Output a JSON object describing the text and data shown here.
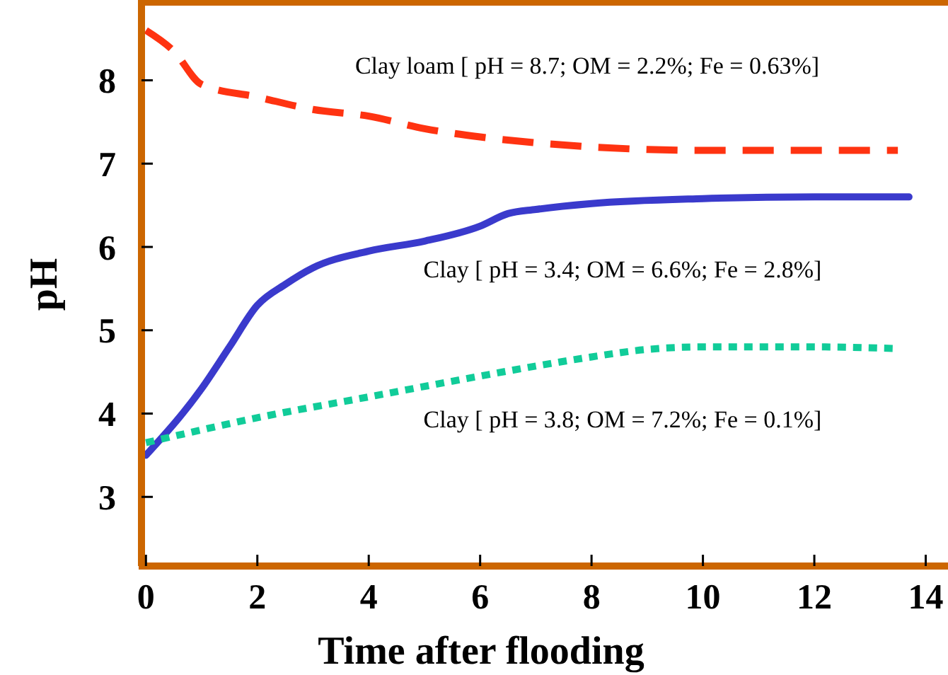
{
  "chart_data": {
    "type": "line",
    "xlabel": "Time after flooding",
    "ylabel": "pH",
    "xlim": [
      -0.08,
      14.4
    ],
    "ylim": [
      2.17,
      8.93
    ],
    "xticks": [
      0,
      2,
      4,
      6,
      8,
      10,
      12,
      14
    ],
    "yticks": [
      3,
      4,
      5,
      6,
      7,
      8
    ],
    "series": [
      {
        "name": "Clay loam  [ pH = 8.7; OM = 2.2%; Fe = 0.63%]",
        "color": "#ff3311",
        "line_style": "dashed",
        "x": [
          0,
          0.5,
          1,
          2,
          3,
          4,
          5,
          6,
          7,
          8,
          9,
          10,
          11,
          12,
          13.5
        ],
        "values": [
          8.6,
          8.35,
          7.95,
          7.8,
          7.65,
          7.57,
          7.42,
          7.32,
          7.25,
          7.2,
          7.17,
          7.16,
          7.16,
          7.16,
          7.16
        ]
      },
      {
        "name": "Clay  [ pH = 3.4; OM = 6.6%; Fe = 2.8%]",
        "color": "#3a3acc",
        "line_style": "solid",
        "x": [
          0,
          1,
          1.5,
          2,
          2.5,
          3,
          4,
          5,
          6,
          6.5,
          7,
          8,
          10,
          12,
          13.7
        ],
        "values": [
          3.5,
          4.3,
          4.8,
          5.3,
          5.55,
          5.75,
          5.95,
          6.07,
          6.25,
          6.4,
          6.45,
          6.52,
          6.58,
          6.6,
          6.6
        ]
      },
      {
        "name": "Clay  [ pH = 3.8; OM = 7.2%; Fe = 0.1%]",
        "color": "#11cc99",
        "line_style": "dotted",
        "x": [
          0,
          2,
          4,
          6,
          7,
          8,
          9,
          10,
          12,
          13.5
        ],
        "values": [
          3.65,
          3.95,
          4.2,
          4.45,
          4.57,
          4.68,
          4.77,
          4.8,
          4.8,
          4.78
        ]
      }
    ]
  }
}
